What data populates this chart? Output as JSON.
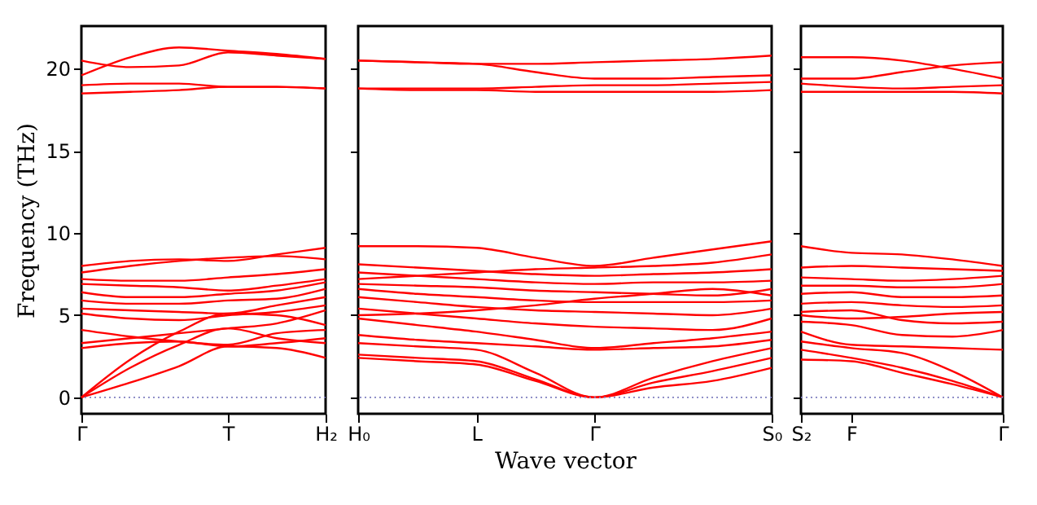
{
  "chart_data": [
    {
      "type": "line",
      "ylabel": "Frequency (THz)",
      "categories": [
        "Γ",
        null,
        null,
        "T",
        null,
        "H₂"
      ],
      "ylim": [
        -1,
        22.6
      ],
      "yticks": [
        0,
        5,
        10,
        15,
        20
      ],
      "grid": false,
      "ref_lines": [
        {
          "axis": "y",
          "value": 0,
          "color": "#8080c0",
          "line_style": "dotted"
        }
      ],
      "series": [
        {
          "color": "#ff0000",
          "values": [
            19.6,
            20.7,
            21.3,
            21.1,
            20.9,
            20.6
          ]
        },
        {
          "color": "#ff0000",
          "values": [
            20.5,
            20.1,
            20.2,
            21.0,
            20.8,
            20.6
          ]
        },
        {
          "color": "#ff0000",
          "values": [
            19.0,
            19.1,
            19.1,
            18.9,
            18.9,
            18.8
          ]
        },
        {
          "color": "#ff0000",
          "values": [
            18.5,
            18.6,
            18.7,
            18.9,
            18.9,
            18.8
          ]
        },
        {
          "color": "#ff0000",
          "values": [
            0,
            0.9,
            1.9,
            3.1,
            3.0,
            2.4
          ]
        },
        {
          "color": "#ff0000",
          "values": [
            0,
            1.8,
            3.2,
            4.2,
            3.6,
            3.3
          ]
        },
        {
          "color": "#ff0000",
          "values": [
            0,
            2.3,
            4.0,
            5.1,
            5.0,
            4.4
          ]
        },
        {
          "color": "#ff0000",
          "values": [
            3.0,
            3.3,
            3.4,
            3.1,
            3.3,
            3.6
          ]
        },
        {
          "color": "#ff0000",
          "values": [
            3.3,
            3.6,
            3.9,
            4.2,
            4.5,
            5.3
          ]
        },
        {
          "color": "#ff0000",
          "values": [
            4.1,
            3.7,
            3.4,
            3.2,
            3.9,
            4.1
          ]
        },
        {
          "color": "#ff0000",
          "values": [
            5.1,
            4.8,
            4.7,
            5.0,
            5.2,
            5.6
          ]
        },
        {
          "color": "#ff0000",
          "values": [
            5.4,
            5.3,
            5.2,
            5.1,
            5.6,
            6.1
          ]
        },
        {
          "color": "#ff0000",
          "values": [
            5.9,
            5.7,
            5.7,
            5.9,
            6.0,
            6.6
          ]
        },
        {
          "color": "#ff0000",
          "values": [
            6.4,
            6.1,
            6.1,
            6.3,
            6.5,
            7.0
          ]
        },
        {
          "color": "#ff0000",
          "values": [
            6.9,
            6.8,
            6.7,
            6.5,
            6.8,
            7.2
          ]
        },
        {
          "color": "#ff0000",
          "values": [
            7.2,
            7.1,
            7.1,
            7.3,
            7.5,
            7.8
          ]
        },
        {
          "color": "#ff0000",
          "values": [
            7.6,
            8.0,
            8.3,
            8.5,
            8.6,
            8.4
          ]
        },
        {
          "color": "#ff0000",
          "values": [
            8.0,
            8.3,
            8.4,
            8.3,
            8.7,
            9.1
          ]
        }
      ]
    },
    {
      "type": "line",
      "xlabel": "Wave vector",
      "categories": [
        "H₀",
        null,
        "L",
        null,
        "Γ",
        null,
        null,
        "S₀"
      ],
      "ylim": [
        -1,
        22.6
      ],
      "yticks": [
        {
          "value": 0,
          "label": null
        },
        {
          "value": 5,
          "label": null
        },
        {
          "value": 10,
          "label": null
        },
        {
          "value": 15,
          "label": null
        },
        {
          "value": 20,
          "label": null
        }
      ],
      "tick_labels": "x",
      "grid": false,
      "ref_lines": [
        {
          "axis": "y",
          "value": 0,
          "color": "#8080c0",
          "line_style": "dotted"
        }
      ],
      "series": [
        {
          "color": "#ff0000",
          "values": [
            20.5,
            20.4,
            20.3,
            20.3,
            20.4,
            20.5,
            20.6,
            20.8
          ]
        },
        {
          "color": "#ff0000",
          "values": [
            20.5,
            20.4,
            20.3,
            19.8,
            19.4,
            19.4,
            19.5,
            19.6
          ]
        },
        {
          "color": "#ff0000",
          "values": [
            18.8,
            18.8,
            18.8,
            18.9,
            19.0,
            19.0,
            19.1,
            19.2
          ]
        },
        {
          "color": "#ff0000",
          "values": [
            18.8,
            18.7,
            18.7,
            18.6,
            18.6,
            18.6,
            18.6,
            18.7
          ]
        },
        {
          "color": "#ff0000",
          "values": [
            2.4,
            2.2,
            2.0,
            1.0,
            0,
            0.6,
            1.0,
            1.8
          ]
        },
        {
          "color": "#ff0000",
          "values": [
            2.6,
            2.4,
            2.2,
            1.1,
            0,
            0.9,
            1.6,
            2.4
          ]
        },
        {
          "color": "#ff0000",
          "values": [
            3.3,
            3.1,
            2.9,
            1.5,
            0,
            1.2,
            2.2,
            3.0
          ]
        },
        {
          "color": "#ff0000",
          "values": [
            3.8,
            3.5,
            3.3,
            3.1,
            2.9,
            3.0,
            3.1,
            3.5
          ]
        },
        {
          "color": "#ff0000",
          "values": [
            4.8,
            4.4,
            4.0,
            3.5,
            3.0,
            3.3,
            3.6,
            4.0
          ]
        },
        {
          "color": "#ff0000",
          "values": [
            5.4,
            5.1,
            4.8,
            4.5,
            4.3,
            4.2,
            4.1,
            4.8
          ]
        },
        {
          "color": "#ff0000",
          "values": [
            6.1,
            5.8,
            5.5,
            5.3,
            5.2,
            5.1,
            5.0,
            5.4
          ]
        },
        {
          "color": "#ff0000",
          "values": [
            6.6,
            6.3,
            6.1,
            5.9,
            5.8,
            5.8,
            5.8,
            5.9
          ]
        },
        {
          "color": "#ff0000",
          "values": [
            6.9,
            6.8,
            6.7,
            6.5,
            6.4,
            6.3,
            6.2,
            6.6
          ]
        },
        {
          "color": "#ff0000",
          "values": [
            7.6,
            7.4,
            7.2,
            7.0,
            6.9,
            7.0,
            7.0,
            7.1
          ]
        },
        {
          "color": "#ff0000",
          "values": [
            8.1,
            7.9,
            7.7,
            7.5,
            7.4,
            7.5,
            7.6,
            7.8
          ]
        },
        {
          "color": "#ff0000",
          "values": [
            9.2,
            9.2,
            9.1,
            8.5,
            8.0,
            8.5,
            9.0,
            9.5
          ]
        },
        {
          "color": "#ff0000",
          "values": [
            7.2,
            7.4,
            7.6,
            7.8,
            7.9,
            8.0,
            8.2,
            8.7
          ]
        },
        {
          "color": "#ff0000",
          "values": [
            5.0,
            5.1,
            5.3,
            5.6,
            6.0,
            6.3,
            6.6,
            6.2
          ]
        }
      ]
    },
    {
      "type": "line",
      "categories": [
        "S₂",
        "F",
        null,
        null,
        "Γ"
      ],
      "ylim": [
        -1,
        22.6
      ],
      "yticks": [
        {
          "value": 0,
          "label": null
        },
        {
          "value": 5,
          "label": null
        },
        {
          "value": 10,
          "label": null
        },
        {
          "value": 15,
          "label": null
        },
        {
          "value": 20,
          "label": null
        }
      ],
      "tick_labels": "x",
      "grid": false,
      "ref_lines": [
        {
          "axis": "y",
          "value": 0,
          "color": "#8080c0",
          "line_style": "dotted"
        }
      ],
      "series": [
        {
          "color": "#ff0000",
          "values": [
            20.7,
            20.7,
            20.5,
            20.0,
            19.4
          ]
        },
        {
          "color": "#ff0000",
          "values": [
            19.4,
            19.4,
            19.8,
            20.2,
            20.4
          ]
        },
        {
          "color": "#ff0000",
          "values": [
            19.1,
            18.9,
            18.8,
            18.9,
            19.0
          ]
        },
        {
          "color": "#ff0000",
          "values": [
            18.6,
            18.6,
            18.6,
            18.6,
            18.5
          ]
        },
        {
          "color": "#ff0000",
          "values": [
            2.3,
            2.2,
            1.5,
            0.8,
            0
          ]
        },
        {
          "color": "#ff0000",
          "values": [
            2.9,
            2.4,
            1.8,
            1.0,
            0
          ]
        },
        {
          "color": "#ff0000",
          "values": [
            3.4,
            3.0,
            2.7,
            1.6,
            0
          ]
        },
        {
          "color": "#ff0000",
          "values": [
            4.0,
            3.2,
            3.1,
            3.0,
            2.9
          ]
        },
        {
          "color": "#ff0000",
          "values": [
            4.6,
            4.4,
            3.8,
            3.7,
            4.1
          ]
        },
        {
          "color": "#ff0000",
          "values": [
            5.2,
            5.3,
            4.7,
            4.5,
            4.6
          ]
        },
        {
          "color": "#ff0000",
          "values": [
            5.7,
            5.8,
            5.6,
            5.5,
            5.6
          ]
        },
        {
          "color": "#ff0000",
          "values": [
            6.3,
            6.4,
            6.1,
            6.1,
            6.2
          ]
        },
        {
          "color": "#ff0000",
          "values": [
            6.8,
            6.8,
            6.7,
            6.7,
            6.9
          ]
        },
        {
          "color": "#ff0000",
          "values": [
            7.3,
            7.2,
            7.1,
            7.2,
            7.4
          ]
        },
        {
          "color": "#ff0000",
          "values": [
            7.9,
            8.0,
            7.9,
            7.8,
            7.7
          ]
        },
        {
          "color": "#ff0000",
          "values": [
            9.2,
            8.8,
            8.7,
            8.4,
            8.0
          ]
        },
        {
          "color": "#ff0000",
          "values": [
            5.0,
            4.8,
            4.9,
            5.1,
            5.2
          ]
        }
      ]
    }
  ]
}
